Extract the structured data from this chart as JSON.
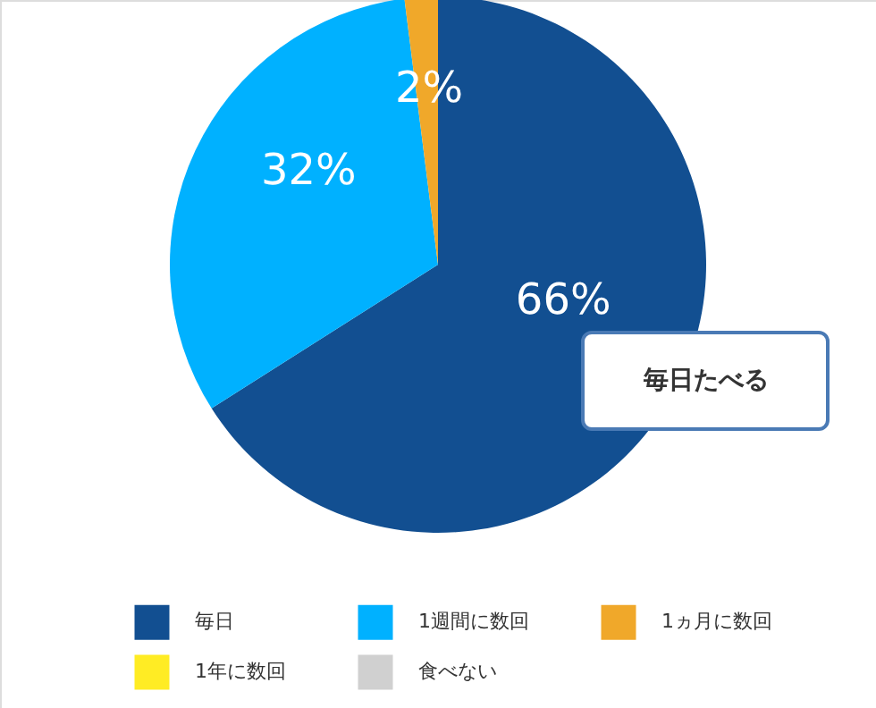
{
  "chart_data": {
    "type": "pie",
    "categories": [
      "毎日",
      "1週間に数回",
      "1ヵ月に数回",
      "1年に数回",
      "食べない"
    ],
    "values": [
      66,
      32,
      2,
      0,
      0
    ],
    "colors": [
      "#124f91",
      "#00b1ff",
      "#f0a82a",
      "#ffec24",
      "#d0d0d0"
    ],
    "value_labels": [
      "66%",
      "32%",
      "2%",
      null,
      null
    ],
    "annotations": [
      "毎日たべる"
    ],
    "legend": "bottom"
  }
}
